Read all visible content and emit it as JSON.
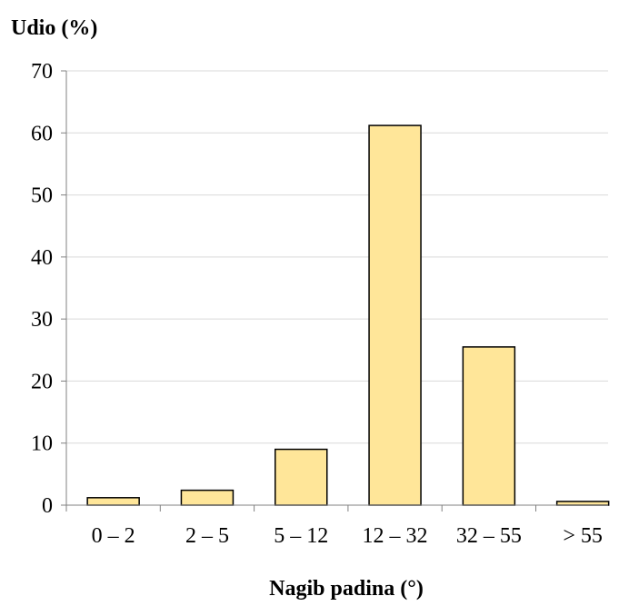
{
  "chart_data": {
    "type": "bar",
    "ylabel": "Udio (%)",
    "xlabel": "Nagib padina (°)",
    "categories": [
      "0 – 2",
      "2 – 5",
      "5 – 12",
      "12 – 32",
      "32 – 55",
      "> 55"
    ],
    "values": [
      1.2,
      2.4,
      9.0,
      61.2,
      25.5,
      0.6
    ],
    "ylim": [
      0,
      70
    ],
    "yticks": [
      0,
      10,
      20,
      30,
      40,
      50,
      60,
      70
    ],
    "grid": true,
    "legend": "none",
    "bar_color": "#FFE699",
    "bar_edge_color": "#000000",
    "grid_color": "#D9D9D9"
  }
}
